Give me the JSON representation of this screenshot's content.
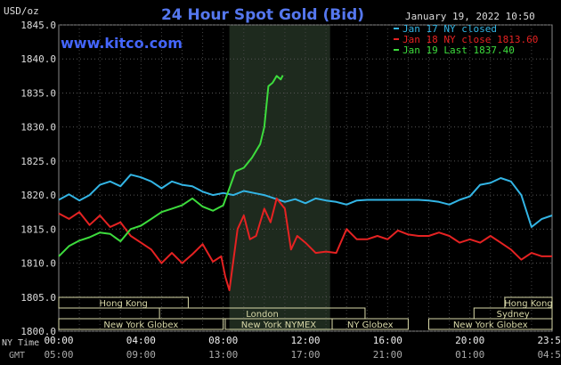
{
  "chart_data": {
    "type": "line",
    "title": "24 Hour Spot Gold (Bid)",
    "timestamp": "January 19, 2022 10:50",
    "ylabel": "USD/oz",
    "source": "www.kitco.com",
    "ylim": [
      1800,
      1845
    ],
    "y_ticks": [
      "1800.0",
      "1805.0",
      "1810.0",
      "1815.0",
      "1820.0",
      "1825.0",
      "1830.0",
      "1835.0",
      "1840.0",
      "1845.0"
    ],
    "xlim": [
      0,
      24
    ],
    "x_ticks": [
      {
        "x": 0,
        "ny": "00:00",
        "gmt": "05:00"
      },
      {
        "x": 4,
        "ny": "04:00",
        "gmt": "09:00"
      },
      {
        "x": 8,
        "ny": "08:00",
        "gmt": "13:00"
      },
      {
        "x": 12,
        "ny": "12:00",
        "gmt": "17:00"
      },
      {
        "x": 16,
        "ny": "16:00",
        "gmt": "21:00"
      },
      {
        "x": 20,
        "ny": "20:00",
        "gmt": "01:00"
      },
      {
        "x": 24,
        "ny": "23:59",
        "gmt": "04:59"
      }
    ],
    "x_axis_label_ny": "NY Time",
    "x_axis_label_gmt": "GMT",
    "highlight_band": [
      8.3,
      13.2
    ],
    "grid": true,
    "legend_position": "top-right",
    "series": [
      {
        "name": "Jan 17 NY closed",
        "color": "#33b5e5",
        "x": [
          0,
          0.5,
          1,
          1.5,
          2,
          2.5,
          3,
          3.5,
          4,
          4.5,
          5,
          5.5,
          6,
          6.5,
          7,
          7.5,
          8,
          8.5,
          9,
          9.5,
          10,
          10.5,
          11,
          11.5,
          12,
          12.5,
          13,
          13.5,
          14,
          14.5,
          15,
          15.5,
          16,
          16.5,
          17,
          17.5,
          18,
          18.5,
          19,
          19.5,
          20,
          20.5,
          21,
          21.5,
          22,
          22.5,
          23,
          23.5,
          24
        ],
        "values": [
          1819.3,
          1820.1,
          1819.2,
          1820.0,
          1821.5,
          1822.0,
          1821.3,
          1823.0,
          1822.6,
          1822.0,
          1821.0,
          1822.0,
          1821.5,
          1821.3,
          1820.5,
          1820.0,
          1820.3,
          1820.0,
          1820.6,
          1820.3,
          1820.0,
          1819.5,
          1819.0,
          1819.4,
          1818.8,
          1819.5,
          1819.2,
          1819.0,
          1818.6,
          1819.2,
          1819.3,
          1819.3,
          1819.3,
          1819.3,
          1819.3,
          1819.3,
          1819.2,
          1819.0,
          1818.6,
          1819.3,
          1819.8,
          1821.5,
          1821.8,
          1822.5,
          1822.0,
          1820.0,
          1815.3,
          1816.5,
          1817.0
        ]
      },
      {
        "name": "Jan 18 NY close 1813.60",
        "color": "#e52222",
        "x": [
          0,
          0.5,
          1,
          1.5,
          2,
          2.5,
          3,
          3.5,
          4,
          4.5,
          5,
          5.5,
          6,
          6.5,
          7,
          7.5,
          7.9,
          8.1,
          8.3,
          8.7,
          9,
          9.3,
          9.6,
          10,
          10.3,
          10.6,
          11,
          11.3,
          11.6,
          12,
          12.5,
          13,
          13.5,
          14,
          14.5,
          15,
          15.5,
          16,
          16.5,
          17,
          17.5,
          18,
          18.5,
          19,
          19.5,
          20,
          20.5,
          21,
          21.5,
          22,
          22.5,
          23,
          23.5,
          24
        ],
        "values": [
          1817.3,
          1816.5,
          1817.5,
          1815.6,
          1817.0,
          1815.3,
          1816.0,
          1814.0,
          1813.0,
          1812.0,
          1810.0,
          1811.5,
          1810.0,
          1811.3,
          1812.8,
          1810.2,
          1811.0,
          1808.0,
          1806.0,
          1815.0,
          1817.0,
          1813.5,
          1814.0,
          1818.0,
          1816.0,
          1819.5,
          1818.0,
          1812.0,
          1814.0,
          1813.0,
          1811.5,
          1811.7,
          1811.5,
          1815.0,
          1813.5,
          1813.5,
          1814.0,
          1813.5,
          1814.8,
          1814.2,
          1814.0,
          1814.0,
          1814.5,
          1814.0,
          1813.0,
          1813.5,
          1813.0,
          1814.0,
          1813.0,
          1812.0,
          1810.5,
          1811.5,
          1811.0,
          1811.0
        ]
      },
      {
        "name": "Jan 19 Last 1837.40",
        "color": "#3ddc3d",
        "x": [
          0,
          0.5,
          1,
          1.5,
          2,
          2.5,
          3,
          3.5,
          4,
          4.5,
          5,
          5.5,
          6,
          6.5,
          7,
          7.5,
          8,
          8.3,
          8.6,
          9,
          9.4,
          9.8,
          10,
          10.2,
          10.4,
          10.5,
          10.6,
          10.8,
          10.9
        ],
        "values": [
          1811.0,
          1812.5,
          1813.3,
          1813.8,
          1814.5,
          1814.3,
          1813.2,
          1815.0,
          1815.5,
          1816.5,
          1817.5,
          1818.0,
          1818.5,
          1819.5,
          1818.3,
          1817.7,
          1818.5,
          1821.0,
          1823.5,
          1824.0,
          1825.5,
          1827.5,
          1830.0,
          1836.0,
          1836.5,
          1837.0,
          1837.5,
          1837.0,
          1837.6
        ]
      }
    ],
    "sessions": [
      {
        "label": "Hong Kong",
        "x0": 0,
        "x1": 6.3,
        "row": 0
      },
      {
        "label": "Hong Kong",
        "x0": 21.7,
        "x1": 24,
        "row": 0
      },
      {
        "label": "London",
        "x0": 4.9,
        "x1": 14.9,
        "row": 1
      },
      {
        "label": "Sydney",
        "x0": 20.2,
        "x1": 24,
        "row": 1
      },
      {
        "label": "New York Globex",
        "x0": 0,
        "x1": 8.0,
        "row": 2
      },
      {
        "label": "New York NYMEX",
        "x0": 8.1,
        "x1": 13.3,
        "row": 2
      },
      {
        "label": "NY Globex",
        "x0": 13.3,
        "x1": 17.0,
        "row": 2
      },
      {
        "label": "New York Globex",
        "x0": 18.0,
        "x1": 24,
        "row": 2
      }
    ]
  }
}
